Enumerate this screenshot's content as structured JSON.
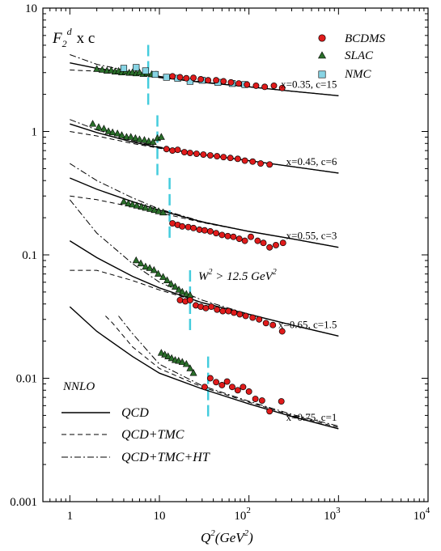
{
  "chart_data": {
    "type": "scatter",
    "x_scale": "log",
    "y_scale": "log",
    "xlim": [
      0.5,
      10000
    ],
    "ylim": [
      0.001,
      10
    ],
    "x_tick_labels": [
      {
        "value": 1,
        "base": "1",
        "exp": ""
      },
      {
        "value": 10,
        "base": "10",
        "exp": ""
      },
      {
        "value": 100,
        "base": "10",
        "exp": "2"
      },
      {
        "value": 1000,
        "base": "10",
        "exp": "3"
      },
      {
        "value": 10000,
        "base": "10",
        "exp": "4"
      }
    ],
    "y_tick_labels": [
      {
        "value": 10,
        "text": "10"
      },
      {
        "value": 1,
        "text": "1"
      },
      {
        "value": 0.1,
        "text": "0.1"
      },
      {
        "value": 0.01,
        "text": "0.01"
      },
      {
        "value": 0.001,
        "text": "0.001"
      }
    ],
    "xlabel": {
      "main": "Q",
      "sup1": "2",
      "paren": "(GeV",
      "sup2": "2",
      "close": ")"
    },
    "ylabel": {
      "main": "F",
      "sub": "2",
      "sup": "d",
      "rest": "x c"
    },
    "legend": {
      "data_series": [
        {
          "name": "BCDMS",
          "marker": "circle",
          "color": "#e01b1b"
        },
        {
          "name": "SLAC",
          "marker": "triangle",
          "color": "#2a6e2a"
        },
        {
          "name": "NMC",
          "marker": "square",
          "color": "#88d4e4"
        }
      ],
      "theory_title": "NNLO",
      "theory": [
        {
          "name": "QCD",
          "style": "solid"
        },
        {
          "name": "QCD+TMC",
          "style": "dashed"
        },
        {
          "name": "QCD+TMC+HT",
          "style": "dashdot"
        }
      ]
    },
    "annotation": {
      "main": "W",
      "sup1": "2",
      "mid": " > 12.5 GeV",
      "sup2": "2"
    },
    "cut_color": "#44ccdd",
    "groups": [
      {
        "label": "x=0.35, c=15",
        "cut_q2": 7.5,
        "qcd": [
          [
            1,
            3.6
          ],
          [
            2,
            3.25
          ],
          [
            5,
            2.95
          ],
          [
            10,
            2.75
          ],
          [
            30,
            2.5
          ],
          [
            100,
            2.3
          ],
          [
            300,
            2.12
          ],
          [
            1000,
            1.95
          ]
        ],
        "tmc": [
          [
            1,
            3.15
          ],
          [
            2,
            3.08
          ],
          [
            5,
            2.88
          ],
          [
            10,
            2.73
          ],
          [
            30,
            2.5
          ],
          [
            100,
            2.3
          ],
          [
            300,
            2.12
          ],
          [
            1000,
            1.95
          ]
        ],
        "ht": [
          [
            1,
            4.2
          ],
          [
            2,
            3.5
          ],
          [
            5,
            3.05
          ],
          [
            10,
            2.8
          ],
          [
            30,
            2.52
          ],
          [
            100,
            2.3
          ],
          [
            300,
            2.12
          ],
          [
            1000,
            1.95
          ]
        ],
        "SLAC": [
          [
            2.0,
            3.2
          ],
          [
            2.3,
            3.15
          ],
          [
            2.6,
            3.1
          ],
          [
            2.9,
            3.12
          ],
          [
            3.2,
            3.05
          ],
          [
            3.5,
            3.08
          ],
          [
            3.8,
            3.0
          ],
          [
            4.2,
            3.05
          ],
          [
            4.6,
            2.98
          ],
          [
            5.0,
            3.0
          ],
          [
            5.5,
            2.95
          ],
          [
            6.0,
            3.0
          ],
          [
            6.6,
            2.92
          ],
          [
            7.3,
            2.95
          ],
          [
            8.2,
            2.9
          ],
          [
            9.2,
            2.88
          ]
        ],
        "NMC": [
          [
            4.0,
            3.25
          ],
          [
            5.5,
            3.3
          ],
          [
            7.0,
            3.1
          ],
          [
            9.0,
            2.9
          ],
          [
            12,
            2.75
          ],
          [
            16,
            2.7
          ],
          [
            22,
            2.55
          ],
          [
            30,
            2.6
          ],
          [
            45,
            2.5
          ],
          [
            65,
            2.45
          ],
          [
            90,
            2.4
          ]
        ],
        "BCDMS": [
          [
            14,
            2.8
          ],
          [
            17,
            2.75
          ],
          [
            20,
            2.7
          ],
          [
            24,
            2.72
          ],
          [
            29,
            2.65
          ],
          [
            35,
            2.6
          ],
          [
            43,
            2.6
          ],
          [
            52,
            2.55
          ],
          [
            63,
            2.5
          ],
          [
            77,
            2.45
          ],
          [
            95,
            2.4
          ],
          [
            120,
            2.35
          ],
          [
            150,
            2.3
          ],
          [
            190,
            2.35
          ],
          [
            235,
            2.25
          ]
        ]
      },
      {
        "label": "x=0.45, c=6",
        "cut_q2": 9.5,
        "qcd": [
          [
            1,
            1.15
          ],
          [
            2,
            0.98
          ],
          [
            5,
            0.82
          ],
          [
            10,
            0.74
          ],
          [
            30,
            0.65
          ],
          [
            100,
            0.58
          ],
          [
            300,
            0.52
          ],
          [
            1000,
            0.46
          ]
        ],
        "tmc": [
          [
            1,
            1.0
          ],
          [
            2,
            0.92
          ],
          [
            5,
            0.8
          ],
          [
            10,
            0.73
          ],
          [
            30,
            0.65
          ],
          [
            100,
            0.58
          ],
          [
            300,
            0.52
          ],
          [
            1000,
            0.46
          ]
        ],
        "ht": [
          [
            1,
            1.25
          ],
          [
            2,
            1.03
          ],
          [
            5,
            0.84
          ],
          [
            10,
            0.75
          ],
          [
            30,
            0.65
          ],
          [
            100,
            0.58
          ],
          [
            300,
            0.52
          ],
          [
            1000,
            0.46
          ]
        ],
        "SLAC": [
          [
            1.8,
            1.15
          ],
          [
            2.1,
            1.08
          ],
          [
            2.4,
            1.05
          ],
          [
            2.7,
            1.0
          ],
          [
            3.0,
            0.98
          ],
          [
            3.4,
            0.96
          ],
          [
            3.8,
            0.93
          ],
          [
            4.3,
            0.9
          ],
          [
            4.8,
            0.9
          ],
          [
            5.4,
            0.88
          ],
          [
            6.0,
            0.86
          ],
          [
            6.8,
            0.85
          ],
          [
            7.6,
            0.83
          ],
          [
            8.5,
            0.82
          ],
          [
            9.5,
            0.88
          ],
          [
            10.5,
            0.9
          ]
        ],
        "BCDMS": [
          [
            12,
            0.72
          ],
          [
            14,
            0.7
          ],
          [
            16,
            0.71
          ],
          [
            19,
            0.68
          ],
          [
            22,
            0.67
          ],
          [
            26,
            0.66
          ],
          [
            31,
            0.65
          ],
          [
            37,
            0.64
          ],
          [
            44,
            0.63
          ],
          [
            52,
            0.62
          ],
          [
            62,
            0.61
          ],
          [
            75,
            0.6
          ],
          [
            90,
            0.58
          ],
          [
            110,
            0.57
          ],
          [
            135,
            0.55
          ],
          [
            170,
            0.54
          ]
        ]
      },
      {
        "label": "x=0.55, c=3",
        "cut_q2": 13,
        "qcd": [
          [
            1,
            0.42
          ],
          [
            2,
            0.34
          ],
          [
            5,
            0.27
          ],
          [
            10,
            0.23
          ],
          [
            30,
            0.185
          ],
          [
            100,
            0.155
          ],
          [
            300,
            0.135
          ],
          [
            1000,
            0.115
          ]
        ],
        "tmc": [
          [
            1,
            0.3
          ],
          [
            2,
            0.28
          ],
          [
            5,
            0.245
          ],
          [
            10,
            0.22
          ],
          [
            30,
            0.183
          ],
          [
            100,
            0.155
          ],
          [
            300,
            0.135
          ],
          [
            1000,
            0.115
          ]
        ],
        "ht": [
          [
            1,
            0.55
          ],
          [
            2,
            0.4
          ],
          [
            5,
            0.29
          ],
          [
            10,
            0.235
          ],
          [
            30,
            0.186
          ],
          [
            100,
            0.155
          ],
          [
            300,
            0.135
          ],
          [
            1000,
            0.115
          ]
        ],
        "SLAC": [
          [
            4.0,
            0.27
          ],
          [
            4.5,
            0.26
          ],
          [
            5.0,
            0.255
          ],
          [
            5.6,
            0.25
          ],
          [
            6.3,
            0.245
          ],
          [
            7.0,
            0.24
          ],
          [
            7.9,
            0.235
          ],
          [
            8.8,
            0.23
          ],
          [
            9.8,
            0.225
          ],
          [
            11,
            0.22
          ]
        ],
        "BCDMS": [
          [
            14,
            0.18
          ],
          [
            16,
            0.175
          ],
          [
            18,
            0.17
          ],
          [
            21,
            0.168
          ],
          [
            24,
            0.165
          ],
          [
            28,
            0.16
          ],
          [
            32,
            0.158
          ],
          [
            37,
            0.155
          ],
          [
            43,
            0.15
          ],
          [
            50,
            0.145
          ],
          [
            58,
            0.142
          ],
          [
            67,
            0.14
          ],
          [
            78,
            0.135
          ],
          [
            90,
            0.13
          ],
          [
            105,
            0.14
          ],
          [
            125,
            0.13
          ],
          [
            145,
            0.125
          ],
          [
            170,
            0.115
          ],
          [
            200,
            0.12
          ],
          [
            240,
            0.125
          ]
        ]
      },
      {
        "label": "x=0.65, c=1.5",
        "cut_q2": 22,
        "qcd": [
          [
            1,
            0.13
          ],
          [
            2,
            0.095
          ],
          [
            5,
            0.067
          ],
          [
            10,
            0.054
          ],
          [
            30,
            0.041
          ],
          [
            100,
            0.033
          ],
          [
            300,
            0.027
          ],
          [
            1000,
            0.022
          ]
        ],
        "tmc": [
          [
            1,
            0.075
          ],
          [
            2,
            0.075
          ],
          [
            5,
            0.062
          ],
          [
            10,
            0.052
          ],
          [
            30,
            0.041
          ],
          [
            100,
            0.033
          ],
          [
            300,
            0.027
          ],
          [
            1000,
            0.022
          ]
        ],
        "ht": [
          [
            1,
            0.28
          ],
          [
            2,
            0.15
          ],
          [
            5,
            0.085
          ],
          [
            10,
            0.06
          ],
          [
            30,
            0.043
          ],
          [
            100,
            0.033
          ],
          [
            300,
            0.027
          ],
          [
            1000,
            0.022
          ]
        ],
        "SLAC": [
          [
            5.5,
            0.09
          ],
          [
            6.2,
            0.085
          ],
          [
            7.0,
            0.08
          ],
          [
            7.8,
            0.078
          ],
          [
            8.7,
            0.075
          ],
          [
            9.7,
            0.07
          ],
          [
            11,
            0.066
          ],
          [
            12.2,
            0.062
          ],
          [
            13.5,
            0.058
          ],
          [
            15,
            0.055
          ],
          [
            16.5,
            0.052
          ],
          [
            18,
            0.05
          ],
          [
            20,
            0.048
          ],
          [
            22,
            0.047
          ]
        ],
        "BCDMS": [
          [
            17,
            0.043
          ],
          [
            19.5,
            0.042
          ],
          [
            22,
            0.043
          ],
          [
            25.5,
            0.039
          ],
          [
            29,
            0.038
          ],
          [
            33,
            0.037
          ],
          [
            38,
            0.038
          ],
          [
            44,
            0.036
          ],
          [
            51,
            0.035
          ],
          [
            59,
            0.035
          ],
          [
            68,
            0.034
          ],
          [
            79,
            0.033
          ],
          [
            92,
            0.032
          ],
          [
            110,
            0.031
          ],
          [
            130,
            0.03
          ],
          [
            155,
            0.028
          ],
          [
            185,
            0.027
          ],
          [
            235,
            0.024
          ]
        ]
      },
      {
        "label": "x=0.75, c=1",
        "cut_q2": 35,
        "qcd": [
          [
            1,
            0.038
          ],
          [
            2,
            0.024
          ],
          [
            5,
            0.015
          ],
          [
            10,
            0.011
          ],
          [
            30,
            0.0082
          ],
          [
            100,
            0.0062
          ],
          [
            300,
            0.0049
          ],
          [
            1000,
            0.0039
          ]
        ],
        "tmc": [
          [
            2.5,
            0.032
          ],
          [
            3,
            0.028
          ],
          [
            5,
            0.018
          ],
          [
            10,
            0.012
          ],
          [
            30,
            0.0085
          ],
          [
            100,
            0.0064
          ],
          [
            300,
            0.005
          ],
          [
            1000,
            0.004
          ]
        ],
        "ht": [
          [
            3.5,
            0.032
          ],
          [
            5,
            0.023
          ],
          [
            10,
            0.013
          ],
          [
            30,
            0.0087
          ],
          [
            100,
            0.0065
          ],
          [
            300,
            0.0051
          ],
          [
            1000,
            0.0041
          ]
        ],
        "SLAC": [
          [
            10.5,
            0.016
          ],
          [
            11.5,
            0.0155
          ],
          [
            12.5,
            0.015
          ],
          [
            13.7,
            0.0145
          ],
          [
            15,
            0.014
          ],
          [
            16.4,
            0.0138
          ],
          [
            18,
            0.0135
          ],
          [
            20,
            0.013
          ],
          [
            22,
            0.012
          ],
          [
            24,
            0.011
          ]
        ],
        "BCDMS": [
          [
            32,
            0.0085
          ],
          [
            37,
            0.01
          ],
          [
            43,
            0.0093
          ],
          [
            50,
            0.0088
          ],
          [
            57,
            0.0094
          ],
          [
            65,
            0.0085
          ],
          [
            75,
            0.008
          ],
          [
            86,
            0.0085
          ],
          [
            100,
            0.0078
          ],
          [
            118,
            0.0068
          ],
          [
            140,
            0.0066
          ],
          [
            170,
            0.0054
          ],
          [
            230,
            0.0065
          ]
        ]
      }
    ]
  }
}
